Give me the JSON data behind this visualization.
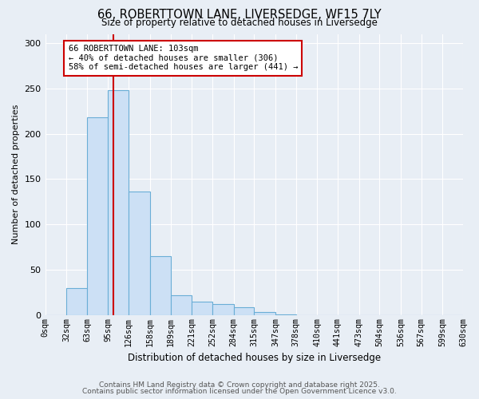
{
  "title": "66, ROBERTTOWN LANE, LIVERSEDGE, WF15 7LY",
  "subtitle": "Size of property relative to detached houses in Liversedge",
  "xlabel": "Distribution of detached houses by size in Liversedge",
  "ylabel": "Number of detached properties",
  "bar_color": "#cce0f5",
  "bar_edge_color": "#6aaed6",
  "bin_edges": [
    0,
    32,
    63,
    95,
    126,
    158,
    189,
    221,
    252,
    284,
    315,
    347,
    378,
    410,
    441,
    473,
    504,
    536,
    567,
    599,
    630
  ],
  "bar_heights": [
    0,
    30,
    218,
    248,
    136,
    65,
    22,
    15,
    12,
    9,
    3,
    1,
    0,
    0,
    0,
    0,
    0,
    0,
    0,
    0
  ],
  "tick_labels": [
    "0sqm",
    "32sqm",
    "63sqm",
    "95sqm",
    "126sqm",
    "158sqm",
    "189sqm",
    "221sqm",
    "252sqm",
    "284sqm",
    "315sqm",
    "347sqm",
    "378sqm",
    "410sqm",
    "441sqm",
    "473sqm",
    "504sqm",
    "536sqm",
    "567sqm",
    "599sqm",
    "630sqm"
  ],
  "vline_x": 103,
  "vline_color": "#cc0000",
  "annotation_text": "66 ROBERTTOWN LANE: 103sqm\n← 40% of detached houses are smaller (306)\n58% of semi-detached houses are larger (441) →",
  "annotation_box_color": "#ffffff",
  "annotation_box_edge": "#cc0000",
  "ylim": [
    0,
    310
  ],
  "yticks": [
    0,
    50,
    100,
    150,
    200,
    250,
    300
  ],
  "footer1": "Contains HM Land Registry data © Crown copyright and database right 2025.",
  "footer2": "Contains public sector information licensed under the Open Government Licence v3.0.",
  "background_color": "#e8eef5",
  "grid_color": "#ffffff",
  "plot_area_color": "#e8eef5"
}
